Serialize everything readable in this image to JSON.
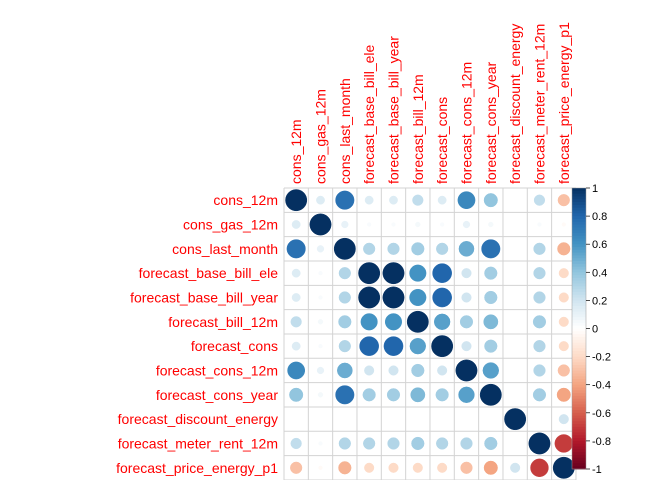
{
  "chart_data": {
    "type": "heatmap",
    "subtype": "correlation-circle-plot",
    "variables": [
      "cons_12m",
      "cons_gas_12m",
      "cons_last_month",
      "forecast_base_bill_ele",
      "forecast_base_bill_year",
      "forecast_bill_12m",
      "forecast_cons",
      "forecast_cons_12m",
      "forecast_cons_year",
      "forecast_discount_energy",
      "forecast_meter_rent_12m",
      "forecast_price_energy_p1"
    ],
    "matrix": [
      [
        1.0,
        0.15,
        0.75,
        0.15,
        0.15,
        0.25,
        0.15,
        0.65,
        0.4,
        0.0,
        0.25,
        -0.3
      ],
      [
        0.15,
        1.0,
        0.1,
        0.03,
        0.03,
        0.05,
        0.03,
        0.1,
        0.05,
        0.0,
        0.03,
        -0.03
      ],
      [
        0.75,
        0.1,
        1.0,
        0.3,
        0.3,
        0.35,
        0.3,
        0.5,
        0.75,
        0.0,
        0.3,
        -0.35
      ],
      [
        0.15,
        0.03,
        0.3,
        1.0,
        1.0,
        0.6,
        0.8,
        0.2,
        0.35,
        0.0,
        0.3,
        -0.2
      ],
      [
        0.15,
        0.03,
        0.3,
        1.0,
        1.0,
        0.6,
        0.8,
        0.2,
        0.35,
        0.0,
        0.3,
        -0.2
      ],
      [
        0.25,
        0.05,
        0.35,
        0.6,
        0.6,
        1.0,
        0.55,
        0.35,
        0.45,
        0.0,
        0.35,
        -0.2
      ],
      [
        0.15,
        0.03,
        0.3,
        0.8,
        0.8,
        0.55,
        1.0,
        0.2,
        0.35,
        0.0,
        0.3,
        -0.2
      ],
      [
        0.65,
        0.1,
        0.5,
        0.2,
        0.2,
        0.35,
        0.2,
        1.0,
        0.55,
        0.0,
        0.3,
        -0.3
      ],
      [
        0.4,
        0.05,
        0.75,
        0.35,
        0.35,
        0.45,
        0.35,
        0.55,
        1.0,
        0.0,
        0.35,
        -0.4
      ],
      [
        0.0,
        0.0,
        0.0,
        0.0,
        0.0,
        0.0,
        0.0,
        0.0,
        0.0,
        1.0,
        0.0,
        0.2
      ],
      [
        0.25,
        0.03,
        0.3,
        0.3,
        0.3,
        0.35,
        0.3,
        0.3,
        0.35,
        0.0,
        1.0,
        -0.7
      ],
      [
        -0.3,
        -0.03,
        -0.35,
        -0.2,
        -0.2,
        -0.2,
        -0.2,
        -0.3,
        -0.4,
        0.2,
        -0.7,
        1.0
      ]
    ],
    "colorbar": {
      "ticks": [
        1,
        0.8,
        0.6,
        0.4,
        0.2,
        0,
        -0.2,
        -0.4,
        -0.6,
        -0.8,
        -1
      ],
      "tick_labels": [
        "1",
        "0.8",
        "0.6",
        "0.4",
        "0.2",
        "0",
        "-0.2",
        "-0.4",
        "-0.6",
        "-0.8",
        "-1"
      ],
      "range": [
        -1,
        1
      ]
    },
    "colors": {
      "negative_end": "#67001F",
      "neutral": "#FFFFFF",
      "positive_end": "#053061",
      "label_color": "#FF0000",
      "grid_color": "#D3D3D3"
    },
    "title": "",
    "xlabel": "",
    "ylabel": ""
  }
}
